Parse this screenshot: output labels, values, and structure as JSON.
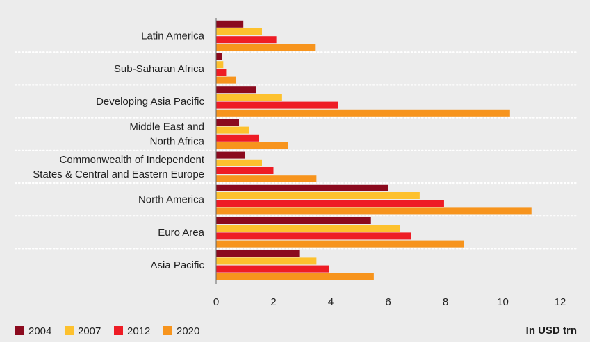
{
  "chart_data": {
    "type": "bar",
    "orientation": "horizontal",
    "categories": [
      [
        "Latin America"
      ],
      [
        "Sub-Saharan Africa"
      ],
      [
        "Developing Asia Pacific"
      ],
      [
        "Middle East and",
        "North Africa"
      ],
      [
        "Commonwealth of Independent",
        "States & Central and Eastern Europe"
      ],
      [
        "North America"
      ],
      [
        "Euro Area"
      ],
      [
        "Asia Pacific"
      ]
    ],
    "series": [
      {
        "name": "2004",
        "color": "#8b0a1e",
        "values": [
          0.95,
          0.2,
          1.4,
          0.8,
          1.0,
          6.0,
          5.4,
          2.9
        ]
      },
      {
        "name": "2007",
        "color": "#fdc12e",
        "values": [
          1.6,
          0.25,
          2.3,
          1.15,
          1.6,
          7.1,
          6.4,
          3.5
        ]
      },
      {
        "name": "2012",
        "color": "#ee1c25",
        "values": [
          2.1,
          0.35,
          4.25,
          1.5,
          2.0,
          7.95,
          6.8,
          3.95
        ]
      },
      {
        "name": "2020",
        "color": "#f7941d",
        "values": [
          3.45,
          0.7,
          10.25,
          2.5,
          3.5,
          11.0,
          8.65,
          5.5
        ]
      }
    ],
    "xticks": [
      "0",
      "2",
      "4",
      "6",
      "8",
      "10",
      "12"
    ],
    "xlim": [
      0,
      12
    ],
    "unit_label": "In USD trn",
    "legend_position": "bottom-left",
    "grid": "dotted separators between categories"
  }
}
